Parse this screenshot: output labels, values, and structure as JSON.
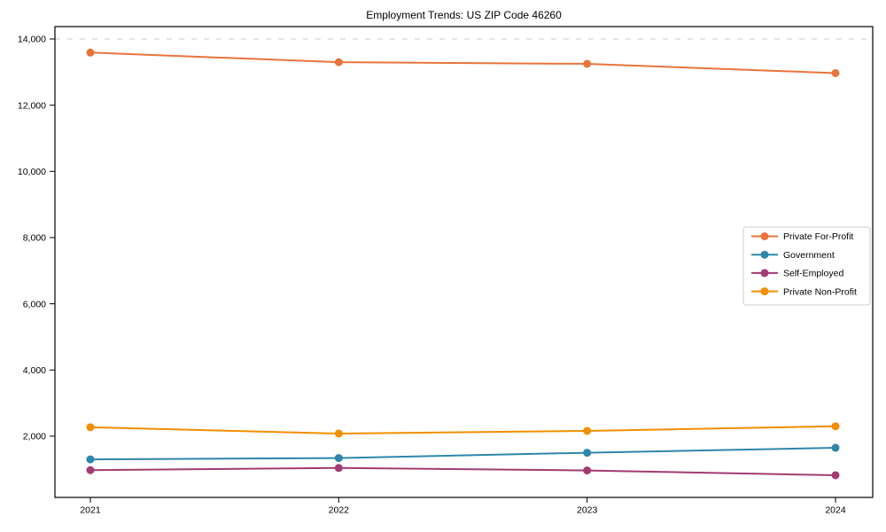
{
  "chart_data": {
    "type": "line",
    "title": "Employment Trends: US ZIP Code 46260",
    "categories": [
      "2021",
      "2022",
      "2023",
      "2024"
    ],
    "series": [
      {
        "name": "Private For-Profit",
        "color": "#E8743B",
        "values": [
          13590,
          13300,
          13250,
          12970
        ]
      },
      {
        "name": "Government",
        "color": "#2E86AB",
        "values": [
          1300,
          1340,
          1500,
          1650
        ]
      },
      {
        "name": "Self-Employed",
        "color": "#A23B72",
        "values": [
          975,
          1040,
          965,
          820
        ]
      },
      {
        "name": "Private Non-Profit",
        "color": "#F18F01",
        "values": [
          2270,
          2080,
          2160,
          2300
        ]
      }
    ],
    "yticks": [
      {
        "value": 2000,
        "label": "2,000"
      },
      {
        "value": 4000,
        "label": "4,000"
      },
      {
        "value": 6000,
        "label": "6,000"
      },
      {
        "value": 8000,
        "label": "8,000"
      },
      {
        "value": 10000,
        "label": "10,000"
      },
      {
        "value": 12000,
        "label": "12,000"
      },
      {
        "value": 14000,
        "label": "14,000"
      }
    ],
    "ylim": [
      150,
      14375
    ],
    "grid": "off",
    "reference_lines": [
      {
        "value": 14000,
        "style": "dashed",
        "color": "#c9c9c9"
      }
    ],
    "legend": {
      "position": "right-center",
      "border_color": "#cccccc",
      "background": "#ffffff",
      "entries": [
        "Private For-Profit",
        "Government",
        "Self-Employed",
        "Private Non-Profit"
      ]
    },
    "axis_color": "#000000",
    "xlabel": "",
    "ylabel": ""
  }
}
